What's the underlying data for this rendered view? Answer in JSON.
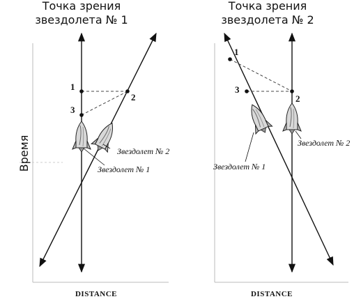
{
  "left_panel": {
    "title_line1": "Точка зрения",
    "title_line2": "звездолета № 1",
    "y_axis_label": "Время",
    "x_axis_label": "DISTANCE",
    "event_labels": [
      "1",
      "2",
      "3"
    ],
    "ship2_label": "Звездолет № 2",
    "ship1_label": "Звездолет № 1"
  },
  "right_panel": {
    "title_line1": "Точка зрения",
    "title_line2": "звездолета № 2",
    "x_axis_label": "DISTANCE",
    "event_labels": [
      "1",
      "3",
      "2"
    ],
    "ship1_label": "Звездолет № 1",
    "ship2_label": "Звездолет № 2"
  }
}
